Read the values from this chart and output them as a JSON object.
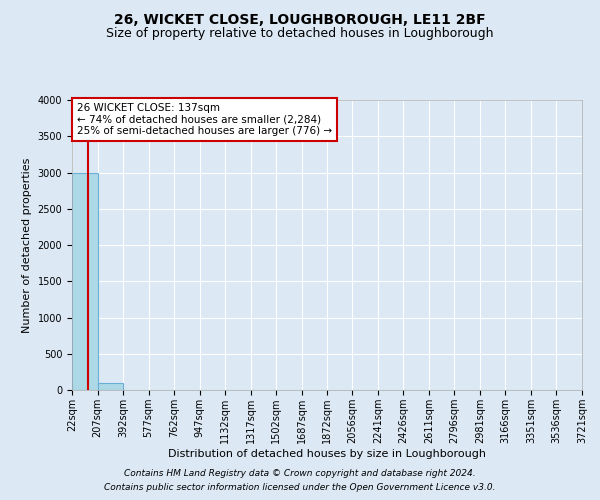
{
  "title": "26, WICKET CLOSE, LOUGHBOROUGH, LE11 2BF",
  "subtitle": "Size of property relative to detached houses in Loughborough",
  "xlabel": "Distribution of detached houses by size in Loughborough",
  "ylabel": "Number of detached properties",
  "footer_line1": "Contains HM Land Registry data © Crown copyright and database right 2024.",
  "footer_line2": "Contains public sector information licensed under the Open Government Licence v3.0.",
  "property_size": 137,
  "property_label": "26 WICKET CLOSE: 137sqm",
  "annotation_line2": "← 74% of detached houses are smaller (2,284)",
  "annotation_line3": "25% of semi-detached houses are larger (776) →",
  "bin_edges": [
    22,
    207,
    392,
    577,
    762,
    947,
    1132,
    1317,
    1502,
    1687,
    1872,
    2056,
    2241,
    2426,
    2611,
    2796,
    2981,
    3166,
    3351,
    3536,
    3721
  ],
  "bin_counts": [
    3000,
    100,
    0,
    0,
    0,
    0,
    0,
    0,
    0,
    0,
    0,
    0,
    0,
    0,
    0,
    0,
    0,
    0,
    0,
    0
  ],
  "bar_color": "#add8e6",
  "bar_edge_color": "#6baed6",
  "red_line_color": "#cc0000",
  "background_color": "#dce9f5",
  "grid_color": "#ffffff",
  "annotation_box_color": "#ffffff",
  "annotation_box_edge": "#cc0000",
  "ylim": [
    0,
    4000
  ],
  "yticks": [
    0,
    500,
    1000,
    1500,
    2000,
    2500,
    3000,
    3500,
    4000
  ],
  "title_fontsize": 10,
  "subtitle_fontsize": 9,
  "axis_label_fontsize": 8,
  "tick_fontsize": 7,
  "annotation_fontsize": 7.5,
  "footer_fontsize": 6.5
}
